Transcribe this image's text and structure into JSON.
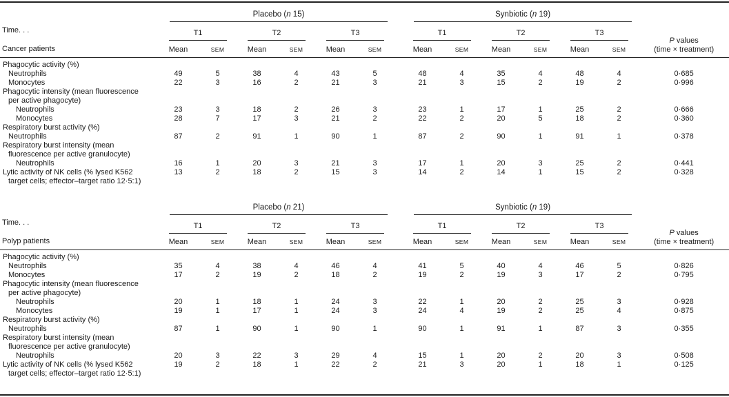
{
  "meta": {
    "time_header": "Time. . .",
    "t_labels": [
      "T1",
      "T2",
      "T3"
    ],
    "mean_label": "Mean",
    "sem_label": "SEM",
    "p_header": {
      "p": "P",
      "rest": " values",
      "line2": "(time × treatment)"
    }
  },
  "tables": [
    {
      "patient_label": "Cancer patients",
      "groups": [
        {
          "pre": "Placebo (",
          "n": "n",
          "post": " 15)"
        },
        {
          "pre": "Synbiotic (",
          "n": "n",
          "post": " 19)"
        }
      ],
      "rows": [
        {
          "label": "Phagocytic activity (%)",
          "indent": 0
        },
        {
          "label": "Neutrophils",
          "indent": 1,
          "values": [
            49,
            5,
            38,
            4,
            43,
            5,
            48,
            4,
            35,
            4,
            48,
            4
          ],
          "p": "0·685"
        },
        {
          "label": "Monocytes",
          "indent": 1,
          "values": [
            22,
            3,
            16,
            2,
            21,
            3,
            21,
            3,
            15,
            2,
            19,
            2
          ],
          "p": "0·996"
        },
        {
          "label": "Phagocytic intensity (mean fluorescence",
          "indent": 0
        },
        {
          "label": "per active phagocyte)",
          "indent": 1
        },
        {
          "label": "Neutrophils",
          "indent": 2,
          "values": [
            23,
            3,
            18,
            2,
            26,
            3,
            23,
            1,
            17,
            1,
            25,
            2
          ],
          "p": "0·666"
        },
        {
          "label": "Monocytes",
          "indent": 2,
          "values": [
            28,
            7,
            17,
            3,
            21,
            2,
            22,
            2,
            20,
            5,
            18,
            2
          ],
          "p": "0·360"
        },
        {
          "label": "Respiratory burst activity (%)",
          "indent": 0
        },
        {
          "label": "Neutrophils",
          "indent": 1,
          "values": [
            87,
            2,
            91,
            1,
            90,
            1,
            87,
            2,
            90,
            1,
            91,
            1
          ],
          "p": "0·378"
        },
        {
          "label": "Respiratory burst intensity (mean",
          "indent": 0
        },
        {
          "label": "fluorescence per active granulocyte)",
          "indent": 1
        },
        {
          "label": "Neutrophils",
          "indent": 2,
          "values": [
            16,
            1,
            20,
            3,
            21,
            3,
            17,
            1,
            20,
            3,
            25,
            2
          ],
          "p": "0·441"
        },
        {
          "label": "Lytic activity of NK cells (% lysed K562",
          "indent": 0,
          "values": [
            13,
            2,
            18,
            2,
            15,
            3,
            14,
            2,
            14,
            1,
            15,
            2
          ],
          "p": "0·328"
        },
        {
          "label": "target cells; effector–target ratio 12·5:1)",
          "indent": 1
        }
      ]
    },
    {
      "patient_label": "Polyp patients",
      "groups": [
        {
          "pre": "Placebo (",
          "n": "n",
          "post": " 21)"
        },
        {
          "pre": "Synbiotic (",
          "n": "n",
          "post": " 19)"
        }
      ],
      "rows": [
        {
          "label": "Phagocytic activity (%)",
          "indent": 0
        },
        {
          "label": "Neutrophils",
          "indent": 1,
          "values": [
            35,
            4,
            38,
            4,
            46,
            4,
            41,
            5,
            40,
            4,
            46,
            5
          ],
          "p": "0·826"
        },
        {
          "label": "Monocytes",
          "indent": 1,
          "values": [
            17,
            2,
            19,
            2,
            18,
            2,
            19,
            2,
            19,
            3,
            17,
            2
          ],
          "p": "0·795"
        },
        {
          "label": "Phagocytic intensity (mean fluorescence",
          "indent": 0
        },
        {
          "label": "per active phagocyte)",
          "indent": 1
        },
        {
          "label": "Neutrophils",
          "indent": 2,
          "values": [
            20,
            1,
            18,
            1,
            24,
            3,
            22,
            1,
            20,
            2,
            25,
            3
          ],
          "p": "0·928"
        },
        {
          "label": "Monocytes",
          "indent": 2,
          "values": [
            19,
            1,
            17,
            1,
            24,
            3,
            24,
            4,
            19,
            2,
            25,
            4
          ],
          "p": "0·875"
        },
        {
          "label": "Respiratory burst activity (%)",
          "indent": 0
        },
        {
          "label": "Neutrophils",
          "indent": 1,
          "values": [
            87,
            1,
            90,
            1,
            90,
            1,
            90,
            1,
            91,
            1,
            87,
            3
          ],
          "p": "0·355"
        },
        {
          "label": "Respiratory burst intensity (mean",
          "indent": 0
        },
        {
          "label": "fluorescence per active granulocyte)",
          "indent": 1
        },
        {
          "label": "Neutrophils",
          "indent": 2,
          "values": [
            20,
            3,
            22,
            3,
            29,
            4,
            15,
            1,
            20,
            2,
            20,
            3
          ],
          "p": "0·508"
        },
        {
          "label": "Lytic activity of NK cells (% lysed K562",
          "indent": 0,
          "values": [
            19,
            2,
            18,
            1,
            22,
            2,
            21,
            3,
            20,
            1,
            18,
            1
          ],
          "p": "0·125"
        },
        {
          "label": "target cells; effector–target ratio 12·5:1)",
          "indent": 1
        }
      ]
    }
  ]
}
